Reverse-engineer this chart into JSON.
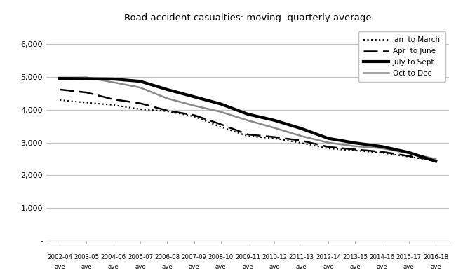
{
  "title": "Road accident casualties: moving  quarterly average",
  "x_labels_top": [
    "2002-04",
    "2003-05",
    "2004-06",
    "2005-07",
    "2006-08",
    "2007-09",
    "2008-10",
    "2009-11",
    "2010-12",
    "2011-13",
    "2012-14",
    "2013-15",
    "2014-16",
    "2015-17",
    "2016-18"
  ],
  "x_labels_bottom": [
    "ave",
    "ave",
    "ave",
    "ave",
    "ave",
    "ave",
    "ave",
    "ave",
    "ave",
    "ave",
    "ave",
    "ave",
    "ave",
    "ave",
    "ave"
  ],
  "jan_march": [
    4300,
    4220,
    4150,
    4020,
    3960,
    3800,
    3480,
    3200,
    3130,
    2990,
    2820,
    2760,
    2690,
    2570,
    2440
  ],
  "apr_june": [
    4620,
    4530,
    4320,
    4200,
    3980,
    3840,
    3560,
    3250,
    3170,
    3060,
    2870,
    2790,
    2720,
    2590,
    2460
  ],
  "july_sept": [
    4960,
    4950,
    4940,
    4870,
    4620,
    4400,
    4180,
    3870,
    3680,
    3430,
    3130,
    2990,
    2880,
    2700,
    2430
  ],
  "oct_dec": [
    4980,
    4990,
    4840,
    4680,
    4350,
    4130,
    3940,
    3680,
    3450,
    3200,
    3000,
    2890,
    2830,
    2680,
    2500
  ],
  "ylim": [
    0,
    6500
  ],
  "yticks": [
    0,
    1000,
    2000,
    3000,
    4000,
    5000,
    6000
  ],
  "ytick_labels": [
    "-",
    "1,000",
    "2,000",
    "3,000",
    "4,000",
    "5,000",
    "6,000"
  ],
  "background_color": "#ffffff",
  "grid_color": "#c0c0c0",
  "legend_labels": [
    "Jan  to March",
    "Apr  to June",
    "July to Sept",
    "Oct to Dec"
  ]
}
